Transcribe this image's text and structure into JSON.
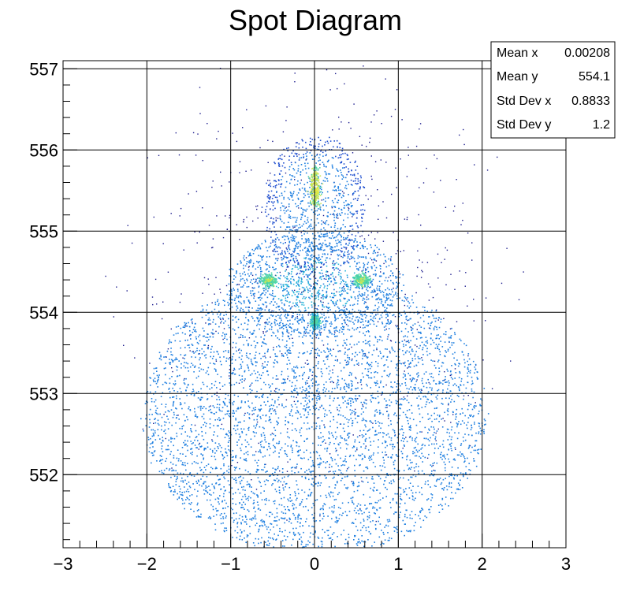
{
  "chart_data": {
    "type": "heatmap",
    "title": "Spot Diagram",
    "xlabel": "",
    "ylabel": "",
    "xlim": [
      -3,
      3
    ],
    "ylim": [
      551.1,
      557.1
    ],
    "x_ticks": [
      "−3",
      "−2",
      "−1",
      "0",
      "1",
      "2",
      "3"
    ],
    "y_ticks": [
      "552",
      "553",
      "554",
      "555",
      "556",
      "557"
    ],
    "x_tick_values": [
      -3,
      -2,
      -1,
      0,
      1,
      2,
      3
    ],
    "y_tick_values": [
      552,
      553,
      554,
      555,
      556,
      557
    ],
    "grid": true,
    "colormap": [
      "#1a1a8c",
      "#1f4fcf",
      "#1e7fe0",
      "#26b3d9",
      "#4fd6a8",
      "#c9e65a",
      "#f2e82a"
    ],
    "stats_box": {
      "placement": "top-right",
      "rows": [
        {
          "label": "Mean x",
          "value": "0.00208"
        },
        {
          "label": "Mean y",
          "value": "554.1"
        },
        {
          "label": "Std Dev x",
          "value": "0.8833"
        },
        {
          "label": "Std Dev y",
          "value": "1.2"
        }
      ]
    },
    "stats": {
      "mean_x": 0.00208,
      "mean_y": 554.1,
      "std_x": 0.8833,
      "std_y": 1.2
    },
    "density_regions": [
      {
        "shape": "ellipse",
        "cx": 0.0,
        "cy": 552.75,
        "rx": 2.05,
        "ry": 1.75,
        "level": 0.35
      },
      {
        "shape": "ellipse",
        "cx": 0.0,
        "cy": 554.35,
        "rx": 1.05,
        "ry": 0.65,
        "level": 0.45
      },
      {
        "shape": "ellipse",
        "cx": 0.0,
        "cy": 555.3,
        "rx": 0.6,
        "ry": 0.9,
        "level": 0.3
      },
      {
        "shape": "ellipse",
        "cx": 0.0,
        "cy": 555.55,
        "rx": 0.05,
        "ry": 0.25,
        "level": 0.95
      },
      {
        "shape": "ellipse",
        "cx": -0.55,
        "cy": 554.4,
        "rx": 0.08,
        "ry": 0.06,
        "level": 0.8
      },
      {
        "shape": "ellipse",
        "cx": 0.55,
        "cy": 554.4,
        "rx": 0.08,
        "ry": 0.06,
        "level": 0.8
      },
      {
        "shape": "ellipse",
        "cx": 0.0,
        "cy": 553.9,
        "rx": 0.04,
        "ry": 0.08,
        "level": 0.7
      }
    ]
  }
}
